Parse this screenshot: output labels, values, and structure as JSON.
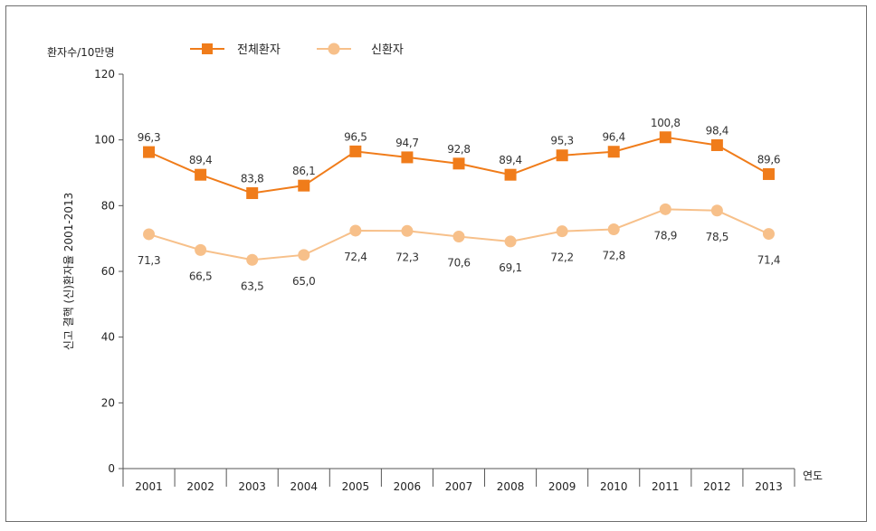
{
  "chart_data": {
    "type": "line",
    "x": [
      "2001",
      "2002",
      "2003",
      "2004",
      "2005",
      "2006",
      "2007",
      "2008",
      "2009",
      "2010",
      "2011",
      "2012",
      "2013"
    ],
    "series": [
      {
        "name": "전체환자",
        "color": "#f07c1a",
        "marker": "square",
        "values": [
          96.3,
          89.4,
          83.8,
          86.1,
          96.5,
          94.7,
          92.8,
          89.4,
          95.3,
          96.4,
          100.8,
          98.4,
          89.6
        ],
        "labels": [
          "96,3",
          "89,4",
          "83,8",
          "86,1",
          "96,5",
          "94,7",
          "92,8",
          "89,4",
          "95,3",
          "96,4",
          "100,8",
          "98,4",
          "89,6"
        ]
      },
      {
        "name": "신환자",
        "color": "#f7c08a",
        "marker": "circle",
        "values": [
          71.3,
          66.5,
          63.5,
          65.0,
          72.4,
          72.3,
          70.6,
          69.1,
          72.2,
          72.8,
          78.9,
          78.5,
          71.4
        ],
        "labels": [
          "71,3",
          "66,5",
          "63,5",
          "65,0",
          "72,4",
          "72,3",
          "70,6",
          "69,1",
          "72,2",
          "72,8",
          "78,9",
          "78,5",
          "71,4"
        ]
      }
    ],
    "yticks": [
      "0",
      "20",
      "40",
      "60",
      "80",
      "100",
      "120"
    ],
    "ylim": [
      0,
      120
    ],
    "ylabel_top": "환자수/10만명",
    "ylabel_side": "신고 결핵 (신)환자율 2001-2013",
    "xlabel": "연도",
    "legend_position": "top-left",
    "grid": false
  }
}
